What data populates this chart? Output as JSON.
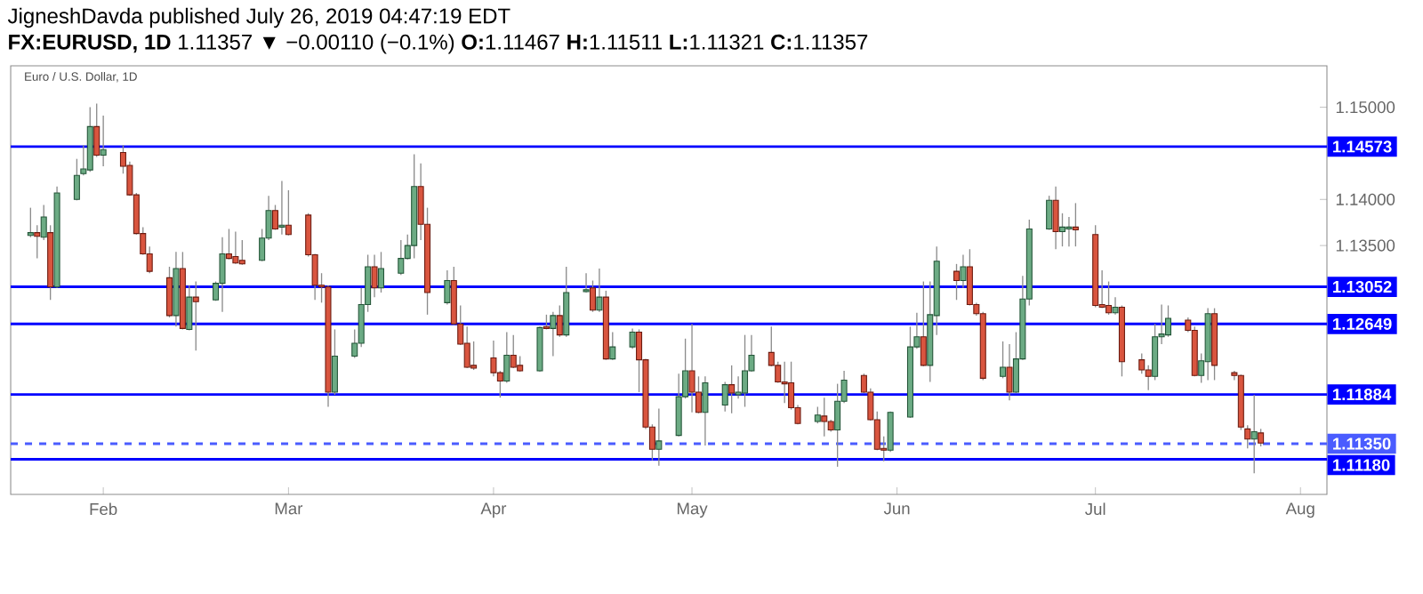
{
  "chart_data": {
    "type": "candlestick",
    "title": "JigneshDavda published July 26, 2019 04:47:19 EDT",
    "subtitle": "**FX:EURUSD, 1D** 1.11357 ▼ −0.00110 (−0.1%) **O:**1.11467 **H:**1.11511 **L:**1.11321 **C:**1.11357",
    "annotations": [
      "Euro / U.S. Dollar, 1D"
    ],
    "x": [
      "2019-01-21",
      "2019-01-22",
      "2019-01-23",
      "2019-01-24",
      "2019-01-25",
      "2019-01-28",
      "2019-01-29",
      "2019-01-30",
      "2019-01-31",
      "2019-02-01",
      "2019-02-04",
      "2019-02-05",
      "2019-02-06",
      "2019-02-07",
      "2019-02-08",
      "2019-02-11",
      "2019-02-12",
      "2019-02-13",
      "2019-02-14",
      "2019-02-15",
      "2019-02-18",
      "2019-02-19",
      "2019-02-20",
      "2019-02-21",
      "2019-02-22",
      "2019-02-25",
      "2019-02-26",
      "2019-02-27",
      "2019-02-28",
      "2019-03-01",
      "2019-03-04",
      "2019-03-05",
      "2019-03-06",
      "2019-03-07",
      "2019-03-08",
      "2019-03-11",
      "2019-03-12",
      "2019-03-13",
      "2019-03-14",
      "2019-03-15",
      "2019-03-18",
      "2019-03-19",
      "2019-03-20",
      "2019-03-21",
      "2019-03-22",
      "2019-03-25",
      "2019-03-26",
      "2019-03-27",
      "2019-03-28",
      "2019-03-29",
      "2019-04-01",
      "2019-04-02",
      "2019-04-03",
      "2019-04-04",
      "2019-04-05",
      "2019-04-08",
      "2019-04-09",
      "2019-04-10",
      "2019-04-11",
      "2019-04-12",
      "2019-04-15",
      "2019-04-16",
      "2019-04-17",
      "2019-04-18",
      "2019-04-19",
      "2019-04-22",
      "2019-04-23",
      "2019-04-24",
      "2019-04-25",
      "2019-04-26",
      "2019-04-29",
      "2019-04-30",
      "2019-05-01",
      "2019-05-02",
      "2019-05-03",
      "2019-05-06",
      "2019-05-07",
      "2019-05-08",
      "2019-05-09",
      "2019-05-10",
      "2019-05-13",
      "2019-05-14",
      "2019-05-15",
      "2019-05-16",
      "2019-05-17",
      "2019-05-20",
      "2019-05-21",
      "2019-05-22",
      "2019-05-23",
      "2019-05-24",
      "2019-05-27",
      "2019-05-28",
      "2019-05-29",
      "2019-05-30",
      "2019-05-31",
      "2019-06-03",
      "2019-06-04",
      "2019-06-05",
      "2019-06-06",
      "2019-06-07",
      "2019-06-10",
      "2019-06-11",
      "2019-06-12",
      "2019-06-13",
      "2019-06-14",
      "2019-06-17",
      "2019-06-18",
      "2019-06-19",
      "2019-06-20",
      "2019-06-21",
      "2019-06-24",
      "2019-06-25",
      "2019-06-26",
      "2019-06-27",
      "2019-06-28",
      "2019-07-01",
      "2019-07-02",
      "2019-07-03",
      "2019-07-04",
      "2019-07-05",
      "2019-07-08",
      "2019-07-09",
      "2019-07-10",
      "2019-07-11",
      "2019-07-12",
      "2019-07-15",
      "2019-07-16",
      "2019-07-17",
      "2019-07-18",
      "2019-07-19",
      "2019-07-22",
      "2019-07-23",
      "2019-07-24",
      "2019-07-25",
      "2019-07-26"
    ],
    "ohlc": [
      [
        1.1361,
        1.1391,
        1.1359,
        1.1364
      ],
      [
        1.1364,
        1.1372,
        1.1336,
        1.136
      ],
      [
        1.1359,
        1.1394,
        1.1356,
        1.1381
      ],
      [
        1.1364,
        1.1372,
        1.1291,
        1.1305
      ],
      [
        1.1305,
        1.1414,
        1.1304,
        1.1407
      ],
      [
        1.14,
        1.1444,
        1.1399,
        1.1426
      ],
      [
        1.1428,
        1.1459,
        1.1426,
        1.1433
      ],
      [
        1.1432,
        1.15,
        1.143,
        1.1479
      ],
      [
        1.1479,
        1.1504,
        1.1446,
        1.1448
      ],
      [
        1.1448,
        1.1491,
        1.1436,
        1.1454
      ],
      [
        1.1451,
        1.1459,
        1.1428,
        1.1436
      ],
      [
        1.1437,
        1.1441,
        1.1404,
        1.1405
      ],
      [
        1.1405,
        1.1407,
        1.1362,
        1.1363
      ],
      [
        1.1363,
        1.137,
        1.134,
        1.1341
      ],
      [
        1.1341,
        1.1349,
        1.132,
        1.1322
      ],
      [
        1.1315,
        1.1327,
        1.1272,
        1.1274
      ],
      [
        1.1274,
        1.1343,
        1.1262,
        1.1325
      ],
      [
        1.1325,
        1.1343,
        1.1259,
        1.126
      ],
      [
        1.1259,
        1.1307,
        1.1258,
        1.1294
      ],
      [
        1.1294,
        1.1311,
        1.1236,
        1.1289
      ],
      [
        1.1291,
        1.1311,
        1.129,
        1.1309
      ],
      [
        1.1309,
        1.1359,
        1.1278,
        1.1341
      ],
      [
        1.1341,
        1.1368,
        1.1335,
        1.1336
      ],
      [
        1.1338,
        1.1365,
        1.133,
        1.1331
      ],
      [
        1.1334,
        1.1356,
        1.1329,
        1.133
      ],
      [
        1.1334,
        1.1368,
        1.1333,
        1.1358
      ],
      [
        1.1358,
        1.1404,
        1.1356,
        1.1388
      ],
      [
        1.1388,
        1.1394,
        1.1367,
        1.1368
      ],
      [
        1.137,
        1.142,
        1.1362,
        1.1372
      ],
      [
        1.1372,
        1.141,
        1.1361,
        1.1362
      ],
      [
        1.1383,
        1.1385,
        1.1338,
        1.134
      ],
      [
        1.134,
        1.1341,
        1.1291,
        1.1307
      ],
      [
        1.1307,
        1.132,
        1.1288,
        1.1305
      ],
      [
        1.1305,
        1.1307,
        1.1175,
        1.1191
      ],
      [
        1.1191,
        1.1259,
        1.1188,
        1.123
      ],
      [
        1.123,
        1.1259,
        1.1228,
        1.1244
      ],
      [
        1.1244,
        1.1304,
        1.124,
        1.1286
      ],
      [
        1.1286,
        1.134,
        1.1278,
        1.1327
      ],
      [
        1.1327,
        1.134,
        1.1294,
        1.1304
      ],
      [
        1.1304,
        1.1343,
        1.1299,
        1.1325
      ],
      [
        1.132,
        1.1356,
        1.1318,
        1.1336
      ],
      [
        1.1336,
        1.1362,
        1.1335,
        1.135
      ],
      [
        1.135,
        1.1449,
        1.1336,
        1.1414
      ],
      [
        1.1414,
        1.1439,
        1.1356,
        1.1373
      ],
      [
        1.1373,
        1.1391,
        1.1275,
        1.1299
      ],
      [
        1.1288,
        1.1323,
        1.1286,
        1.1312
      ],
      [
        1.1312,
        1.1327,
        1.1264,
        1.1265
      ],
      [
        1.1265,
        1.1285,
        1.1242,
        1.1243
      ],
      [
        1.1244,
        1.1262,
        1.1217,
        1.1218
      ],
      [
        1.122,
        1.1246,
        1.1215,
        1.1217
      ],
      [
        1.1228,
        1.1247,
        1.1208,
        1.1212
      ],
      [
        1.1212,
        1.1214,
        1.1185,
        1.1203
      ],
      [
        1.1203,
        1.1256,
        1.1201,
        1.1231
      ],
      [
        1.1231,
        1.1253,
        1.1217,
        1.1218
      ],
      [
        1.122,
        1.123,
        1.1213,
        1.1214
      ],
      [
        1.1214,
        1.1262,
        1.1213,
        1.1261
      ],
      [
        1.1262,
        1.1275,
        1.1259,
        1.126
      ],
      [
        1.126,
        1.1278,
        1.123,
        1.1274
      ],
      [
        1.1274,
        1.1285,
        1.1251,
        1.1253
      ],
      [
        1.1253,
        1.1327,
        1.1251,
        1.1299
      ],
      [
        1.13,
        1.132,
        1.1299,
        1.1302
      ],
      [
        1.1304,
        1.1312,
        1.1278,
        1.128
      ],
      [
        1.128,
        1.1325,
        1.1278,
        1.1294
      ],
      [
        1.1294,
        1.1301,
        1.1226,
        1.1227
      ],
      [
        1.1227,
        1.1256,
        1.1226,
        1.124
      ],
      [
        1.124,
        1.126,
        1.1238,
        1.1256
      ],
      [
        1.1256,
        1.1259,
        1.1191,
        1.1226
      ],
      [
        1.1226,
        1.1227,
        1.1151,
        1.1153
      ],
      [
        1.1153,
        1.1156,
        1.1117,
        1.1129
      ],
      [
        1.1129,
        1.1173,
        1.1111,
        1.1138
      ],
      [
        1.1144,
        1.1211,
        1.1143,
        1.1186
      ],
      [
        1.1186,
        1.1249,
        1.1184,
        1.1214
      ],
      [
        1.1214,
        1.1265,
        1.1169,
        1.1191
      ],
      [
        1.1191,
        1.1208,
        1.1168,
        1.1169
      ],
      [
        1.1169,
        1.1208,
        1.1133,
        1.1201
      ],
      [
        1.1177,
        1.1202,
        1.117,
        1.1199
      ],
      [
        1.1199,
        1.122,
        1.1168,
        1.119
      ],
      [
        1.1188,
        1.1208,
        1.1184,
        1.1191
      ],
      [
        1.119,
        1.1253,
        1.1175,
        1.1214
      ],
      [
        1.1214,
        1.1253,
        1.1213,
        1.1231
      ],
      [
        1.1234,
        1.1262,
        1.1219,
        1.122
      ],
      [
        1.122,
        1.1224,
        1.1201,
        1.1202
      ],
      [
        1.1202,
        1.1224,
        1.1179,
        1.12
      ],
      [
        1.1201,
        1.1224,
        1.1172,
        1.1174
      ],
      [
        1.1174,
        1.1177,
        1.1156,
        1.1157
      ],
      [
        1.1159,
        1.1175,
        1.1157,
        1.1166
      ],
      [
        1.1165,
        1.1185,
        1.1143,
        1.1159
      ],
      [
        1.1159,
        1.1161,
        1.1148,
        1.115
      ],
      [
        1.115,
        1.12,
        1.111,
        1.1181
      ],
      [
        1.1181,
        1.1214,
        1.1179,
        1.1204
      ],
      [
        1.1209,
        1.1211,
        1.119,
        1.1191
      ],
      [
        1.1191,
        1.1195,
        1.116,
        1.1161
      ],
      [
        1.1161,
        1.117,
        1.1128,
        1.1129
      ],
      [
        1.113,
        1.1143,
        1.1116,
        1.1128
      ],
      [
        1.1128,
        1.117,
        1.1126,
        1.1169
      ],
      [
        1.1164,
        1.1262,
        1.1163,
        1.124
      ],
      [
        1.124,
        1.1277,
        1.1238,
        1.1251
      ],
      [
        1.1251,
        1.1311,
        1.1219,
        1.122
      ],
      [
        1.122,
        1.1311,
        1.1202,
        1.1275
      ],
      [
        1.1274,
        1.1349,
        1.1253,
        1.1333
      ],
      [
        1.1322,
        1.133,
        1.1291,
        1.1312
      ],
      [
        1.1312,
        1.134,
        1.1304,
        1.1327
      ],
      [
        1.1327,
        1.1346,
        1.1285,
        1.1286
      ],
      [
        1.1286,
        1.1288,
        1.1274,
        1.1276
      ],
      [
        1.1276,
        1.1278,
        1.1204,
        1.1206
      ],
      [
        1.1208,
        1.1246,
        1.1206,
        1.1218
      ],
      [
        1.1218,
        1.1243,
        1.1182,
        1.1191
      ],
      [
        1.1191,
        1.1256,
        1.119,
        1.1227
      ],
      [
        1.1227,
        1.1317,
        1.1226,
        1.1292
      ],
      [
        1.1292,
        1.1378,
        1.1285,
        1.1368
      ],
      [
        1.1368,
        1.1404,
        1.1367,
        1.1399
      ],
      [
        1.1399,
        1.1414,
        1.1346,
        1.1365
      ],
      [
        1.1365,
        1.1385,
        1.1349,
        1.137
      ],
      [
        1.1368,
        1.1381,
        1.1349,
        1.137
      ],
      [
        1.137,
        1.1396,
        1.1349,
        1.1367
      ],
      [
        1.1362,
        1.1372,
        1.1283,
        1.1285
      ],
      [
        1.1286,
        1.1323,
        1.1282,
        1.1283
      ],
      [
        1.1285,
        1.1311,
        1.1275,
        1.1277
      ],
      [
        1.1277,
        1.1294,
        1.1275,
        1.1283
      ],
      [
        1.1283,
        1.1285,
        1.1208,
        1.1224
      ],
      [
        1.1226,
        1.1233,
        1.1211,
        1.1215
      ],
      [
        1.1215,
        1.122,
        1.1193,
        1.1208
      ],
      [
        1.1208,
        1.1265,
        1.1204,
        1.1251
      ],
      [
        1.1251,
        1.1286,
        1.1243,
        1.1254
      ],
      [
        1.1253,
        1.1285,
        1.1251,
        1.1271
      ],
      [
        1.1269,
        1.1272,
        1.1256,
        1.1258
      ],
      [
        1.1258,
        1.1262,
        1.1208,
        1.1209
      ],
      [
        1.1209,
        1.1233,
        1.1201,
        1.1225
      ],
      [
        1.1224,
        1.1282,
        1.1204,
        1.1276
      ],
      [
        1.1276,
        1.1282,
        1.1204,
        1.122
      ],
      [
        1.1212,
        1.1214,
        1.1204,
        1.1209
      ],
      [
        1.1209,
        1.121,
        1.115,
        1.1153
      ],
      [
        1.1151,
        1.1155,
        1.113,
        1.114
      ],
      [
        1.114,
        1.1188,
        1.1103,
        1.1148
      ],
      [
        1.11467,
        1.11511,
        1.11321,
        1.11357
      ]
    ],
    "xlim": [
      "2019-01-18",
      "2019-08-05"
    ],
    "xticks": [
      {
        "value": "2019-02-01",
        "label": "Feb"
      },
      {
        "value": "2019-03-01",
        "label": "Mar"
      },
      {
        "value": "2019-04-01",
        "label": "Apr"
      },
      {
        "value": "2019-05-01",
        "label": "May"
      },
      {
        "value": "2019-06-01",
        "label": "Jun"
      },
      {
        "value": "2019-07-01",
        "label": "Jul"
      },
      {
        "value": "2019-08-01",
        "label": "Aug"
      }
    ],
    "ylim": [
      1.108,
      1.1545
    ],
    "yticks": [
      {
        "value": 1.135,
        "label": "1.13500"
      },
      {
        "value": 1.14,
        "label": "1.14000"
      },
      {
        "value": 1.15,
        "label": "1.15000"
      }
    ],
    "ref_lines": [
      {
        "axis": "y",
        "value": 1.14573,
        "label": "1.14573",
        "color": "#0000ff"
      },
      {
        "axis": "y",
        "value": 1.13052,
        "label": "1.13052",
        "color": "#0000ff"
      },
      {
        "axis": "y",
        "value": 1.12649,
        "label": "1.12649",
        "color": "#0000ff"
      },
      {
        "axis": "y",
        "value": 1.11884,
        "label": "1.11884",
        "color": "#0000ff"
      },
      {
        "axis": "y",
        "value": 1.1135,
        "label": "1.11350",
        "color": "#4a5cff",
        "line_style": "dashed"
      },
      {
        "axis": "y",
        "value": 1.1118,
        "label": "1.11180",
        "color": "#0000ff"
      }
    ]
  }
}
